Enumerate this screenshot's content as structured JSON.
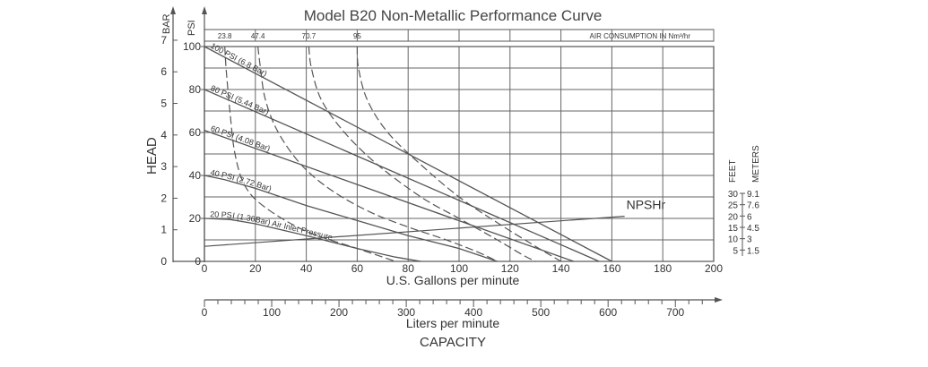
{
  "chart_data": {
    "type": "line",
    "title": "Model B20 Non-Metallic Performance Curve",
    "xlabel": "U.S. Gallons per minute",
    "xlim": [
      0,
      200
    ],
    "x_ticks": [
      0,
      20,
      40,
      60,
      80,
      100,
      120,
      140,
      160,
      180,
      200
    ],
    "ylabel": "HEAD",
    "ylim_psi": [
      0,
      100
    ],
    "psi_unit": "PSI",
    "psi_ticks": [
      0,
      20,
      40,
      60,
      80,
      100
    ],
    "bar_unit": "BAR",
    "bar_ticks": [
      0,
      1,
      2,
      3,
      4,
      5,
      6,
      7
    ],
    "liters_axis": {
      "label": "Liters per minute",
      "max": 757,
      "ticks": [
        0,
        100,
        200,
        300,
        400,
        500,
        600,
        700
      ]
    },
    "capacity_label": "CAPACITY",
    "air_consumption": {
      "label": "AIR CONSUMPTION IN Nm³/hr",
      "ticks": [
        {
          "label": "23.8",
          "x": 8
        },
        {
          "label": "47.4",
          "x": 21
        },
        {
          "label": "70.7",
          "x": 41
        },
        {
          "label": "95",
          "x": 60
        }
      ]
    },
    "npsh_axis": {
      "feet_label": "FEET",
      "meters_label": "METERS",
      "feet_ticks": [
        "5",
        "10",
        "15",
        "20",
        "25",
        "30"
      ],
      "meters_ticks": [
        "1.5",
        "3",
        "4.5",
        "6",
        "7.6",
        "9.1"
      ]
    },
    "npsh_curve": {
      "name": "NPSHr",
      "points": [
        [
          0,
          7
        ],
        [
          165,
          21
        ]
      ]
    },
    "series": [
      {
        "name": "100 PSI (6.8 Bar)",
        "points": [
          [
            0,
            100
          ],
          [
            160,
            0
          ]
        ]
      },
      {
        "name": "80 PSI (5.44 Bar)",
        "points": [
          [
            0,
            80
          ],
          [
            155,
            0
          ]
        ]
      },
      {
        "name": "60 PSI (4.08 Bar)",
        "points": [
          [
            0,
            61
          ],
          [
            145,
            0
          ]
        ]
      },
      {
        "name": "40 PSI (2.72 Bar)",
        "points": [
          [
            0,
            40
          ],
          [
            8,
            38
          ],
          [
            20,
            34
          ],
          [
            40,
            26
          ],
          [
            60,
            19
          ],
          [
            80,
            12
          ],
          [
            100,
            6
          ],
          [
            115,
            0
          ]
        ]
      },
      {
        "name": "20 PSI (1.36Bar) Air Inlet Pressure",
        "points": [
          [
            0,
            20
          ],
          [
            10,
            19.5
          ],
          [
            20,
            17.5
          ],
          [
            40,
            12
          ],
          [
            60,
            6
          ],
          [
            75,
            2
          ],
          [
            85,
            0
          ]
        ]
      }
    ],
    "air_curves": [
      {
        "name": "23.8",
        "points": [
          [
            8,
            100
          ],
          [
            8.5,
            90
          ],
          [
            10,
            70
          ],
          [
            12,
            50
          ],
          [
            16,
            35
          ],
          [
            24,
            25
          ],
          [
            40,
            14
          ],
          [
            60,
            6
          ],
          [
            75,
            0
          ]
        ]
      },
      {
        "name": "47.4",
        "points": [
          [
            21,
            100
          ],
          [
            22,
            90
          ],
          [
            24,
            75
          ],
          [
            29,
            60
          ],
          [
            38,
            45
          ],
          [
            50,
            33
          ],
          [
            65,
            23
          ],
          [
            80,
            16
          ],
          [
            95,
            10
          ],
          [
            108,
            4
          ],
          [
            115,
            0
          ]
        ]
      },
      {
        "name": "70.7",
        "points": [
          [
            41,
            100
          ],
          [
            42,
            90
          ],
          [
            46,
            75
          ],
          [
            55,
            60
          ],
          [
            68,
            45
          ],
          [
            85,
            30
          ],
          [
            100,
            20
          ],
          [
            115,
            10
          ],
          [
            125,
            3
          ],
          [
            130,
            0
          ]
        ]
      },
      {
        "name": "95",
        "points": [
          [
            60,
            100
          ],
          [
            60.5,
            90
          ],
          [
            64,
            75
          ],
          [
            72,
            60
          ],
          [
            85,
            45
          ],
          [
            100,
            30
          ],
          [
            115,
            18
          ],
          [
            130,
            7
          ],
          [
            140,
            0
          ]
        ]
      }
    ]
  }
}
